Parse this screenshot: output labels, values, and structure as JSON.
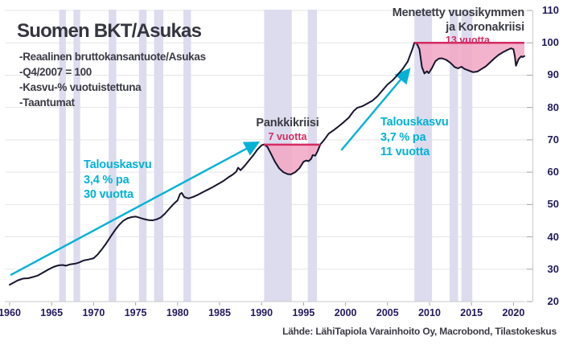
{
  "title": "Suomen BKT/Asukas",
  "subtitle": {
    "lines": [
      "-Reaalinen bruttokansantuote/Asukas",
      "-Q4/2007 = 100",
      "-Kasvu-% vuotuistettuna",
      "-Taantumat"
    ]
  },
  "source": "Lähde: LähiTapiola Varainhoito Oy, Macrobond, Tilastokeskus",
  "annotations": {
    "growth1": {
      "lines": [
        "Talouskasvu",
        "3,4 % pa",
        "30 vuotta"
      ]
    },
    "banking_crisis": {
      "title": "Pankkikriisi",
      "duration": "7 vuotta"
    },
    "growth2": {
      "lines": [
        "Talouskasvu",
        "3,7 % pa",
        "11 vuotta"
      ]
    },
    "lost_decade": {
      "title_lines": [
        "Menetetty vuosikymmen",
        "ja Koronakriisi"
      ],
      "duration": "13 vuotta"
    }
  },
  "colors": {
    "curve": "#16162e",
    "cyan_accent": "#00b2d6",
    "crimson_accent": "#d62b62",
    "pink_fill": "#f2a6c3",
    "recession_band": "#dcdcee",
    "gridline": "#e5e5e5",
    "axis_line": "#c9c9c9",
    "tick": "#a8a8a8",
    "tick_label": "#221a5e",
    "text_dark": "#3a3a44"
  },
  "chart_data": {
    "type": "line",
    "title": "Suomen BKT/Asukas",
    "xlabel": "",
    "ylabel": "",
    "x_ticks": [
      1960,
      1965,
      1970,
      1975,
      1980,
      1985,
      1990,
      1995,
      2000,
      2005,
      2010,
      2015,
      2020
    ],
    "y_ticks": [
      20,
      30,
      40,
      50,
      60,
      70,
      80,
      90,
      100,
      110
    ],
    "xlim": [
      1959.4,
      2022.2
    ],
    "ylim": [
      20,
      110
    ],
    "grid": "horizontal",
    "legend": "none",
    "series": [
      {
        "name": "Reaalinen BKT/Asukas, Q4/2007 = 100",
        "points": [
          [
            1960.0,
            25.2
          ],
          [
            1960.5,
            25.9
          ],
          [
            1961.0,
            26.6
          ],
          [
            1961.6,
            27.1
          ],
          [
            1962.2,
            27.2
          ],
          [
            1962.8,
            27.6
          ],
          [
            1963.4,
            28.1
          ],
          [
            1964.0,
            29.0
          ],
          [
            1964.6,
            29.9
          ],
          [
            1965.2,
            30.7
          ],
          [
            1965.8,
            31.2
          ],
          [
            1966.3,
            31.3
          ],
          [
            1966.7,
            31.1
          ],
          [
            1967.2,
            31.5
          ],
          [
            1967.8,
            31.7
          ],
          [
            1968.3,
            32.1
          ],
          [
            1968.8,
            32.7
          ],
          [
            1969.4,
            33.0
          ],
          [
            1970.0,
            33.4
          ],
          [
            1970.5,
            34.6
          ],
          [
            1971.0,
            36.2
          ],
          [
            1971.5,
            38.0
          ],
          [
            1972.0,
            40.0
          ],
          [
            1972.5,
            41.9
          ],
          [
            1973.0,
            43.6
          ],
          [
            1973.5,
            44.9
          ],
          [
            1974.0,
            45.7
          ],
          [
            1974.5,
            46.1
          ],
          [
            1975.0,
            46.3
          ],
          [
            1975.5,
            45.9
          ],
          [
            1976.0,
            45.5
          ],
          [
            1976.5,
            45.2
          ],
          [
            1977.0,
            45.1
          ],
          [
            1977.5,
            45.4
          ],
          [
            1978.0,
            46.0
          ],
          [
            1978.5,
            47.2
          ],
          [
            1979.0,
            48.7
          ],
          [
            1979.5,
            50.1
          ],
          [
            1980.0,
            51.3
          ],
          [
            1980.3,
            53.3
          ],
          [
            1980.5,
            53.6
          ],
          [
            1980.8,
            52.3
          ],
          [
            1981.3,
            51.9
          ],
          [
            1981.8,
            52.3
          ],
          [
            1982.4,
            53.0
          ],
          [
            1983.0,
            53.8
          ],
          [
            1983.6,
            54.6
          ],
          [
            1984.2,
            55.4
          ],
          [
            1984.8,
            56.3
          ],
          [
            1985.4,
            57.2
          ],
          [
            1986.0,
            58.3
          ],
          [
            1986.6,
            59.3
          ],
          [
            1987.0,
            60.2
          ],
          [
            1987.2,
            61.4
          ],
          [
            1987.5,
            60.6
          ],
          [
            1988.0,
            62.0
          ],
          [
            1988.5,
            63.6
          ],
          [
            1989.0,
            65.2
          ],
          [
            1989.5,
            67.0
          ],
          [
            1990.0,
            68.3
          ],
          [
            1990.3,
            68.6
          ],
          [
            1990.7,
            67.8
          ],
          [
            1991.1,
            65.8
          ],
          [
            1991.6,
            63.2
          ],
          [
            1992.1,
            61.2
          ],
          [
            1992.6,
            60.0
          ],
          [
            1993.1,
            59.4
          ],
          [
            1993.5,
            59.3
          ],
          [
            1994.0,
            60.0
          ],
          [
            1994.5,
            61.2
          ],
          [
            1995.0,
            63.2
          ],
          [
            1995.3,
            63.6
          ],
          [
            1995.6,
            63.4
          ],
          [
            1995.9,
            64.1
          ],
          [
            1996.1,
            65.3
          ],
          [
            1996.4,
            65.1
          ],
          [
            1996.7,
            66.6
          ],
          [
            1997.0,
            68.6
          ],
          [
            1997.4,
            69.8
          ],
          [
            1998.0,
            71.9
          ],
          [
            1998.6,
            73.0
          ],
          [
            1999.2,
            74.2
          ],
          [
            1999.8,
            75.5
          ],
          [
            2000.4,
            76.9
          ],
          [
            2001.0,
            79.0
          ],
          [
            2001.4,
            79.9
          ],
          [
            2002.0,
            80.4
          ],
          [
            2002.6,
            81.2
          ],
          [
            2003.2,
            82.1
          ],
          [
            2003.8,
            83.5
          ],
          [
            2004.4,
            85.3
          ],
          [
            2005.0,
            87.1
          ],
          [
            2005.6,
            88.4
          ],
          [
            2006.2,
            90.1
          ],
          [
            2006.8,
            91.9
          ],
          [
            2007.4,
            94.2
          ],
          [
            2008.0,
            98.3
          ],
          [
            2008.2,
            100.0
          ],
          [
            2008.5,
            99.7
          ],
          [
            2008.8,
            98.0
          ],
          [
            2009.1,
            92.5
          ],
          [
            2009.4,
            90.5
          ],
          [
            2009.7,
            91.2
          ],
          [
            2009.9,
            90.6
          ],
          [
            2010.3,
            92.2
          ],
          [
            2010.7,
            94.3
          ],
          [
            2011.1,
            95.1
          ],
          [
            2011.5,
            95.2
          ],
          [
            2012.0,
            94.7
          ],
          [
            2012.5,
            93.8
          ],
          [
            2013.0,
            92.5
          ],
          [
            2013.4,
            92.1
          ],
          [
            2013.8,
            92.6
          ],
          [
            2014.2,
            91.9
          ],
          [
            2014.7,
            91.4
          ],
          [
            2015.2,
            90.9
          ],
          [
            2015.7,
            91.1
          ],
          [
            2016.2,
            91.9
          ],
          [
            2016.7,
            92.7
          ],
          [
            2017.2,
            93.9
          ],
          [
            2017.7,
            95.1
          ],
          [
            2018.2,
            96.2
          ],
          [
            2018.7,
            97.0
          ],
          [
            2019.2,
            97.7
          ],
          [
            2019.7,
            98.3
          ],
          [
            2020.0,
            98.0
          ],
          [
            2020.15,
            96.0
          ],
          [
            2020.3,
            92.9
          ],
          [
            2020.6,
            94.9
          ],
          [
            2020.9,
            95.8
          ],
          [
            2021.1,
            95.6
          ],
          [
            2021.3,
            95.9
          ]
        ]
      }
    ],
    "recession_bands": [
      [
        1965.9,
        1966.7
      ],
      [
        1967.6,
        1968.4
      ],
      [
        1971.8,
        1972.7
      ],
      [
        1975.4,
        1976.3
      ],
      [
        1977.2,
        1978.3
      ],
      [
        1980.7,
        1981.6
      ],
      [
        1990.3,
        1993.6
      ],
      [
        1995.5,
        1996.6
      ],
      [
        2008.2,
        2010.3
      ],
      [
        2012.4,
        2013.4
      ],
      [
        2013.8,
        2015.1
      ]
    ],
    "crisis_regions": [
      {
        "from": 1990.3,
        "to": 1997.0,
        "level": 68.5,
        "label": "Pankkikriisi",
        "duration_label": "7 vuotta"
      },
      {
        "from": 2008.2,
        "to": 2021.3,
        "level": 100,
        "label": "Menetetty vuosikymmen ja Koronakriisi",
        "duration_label": "13 vuotta"
      }
    ],
    "trend_arrows": [
      {
        "from": [
          1960.1,
          28.2
        ],
        "to": [
          1989.6,
          69.2
        ],
        "label": "Talouskasvu 3,4 % pa 30 vuotta"
      },
      {
        "from": [
          1999.5,
          66.8
        ],
        "to": [
          2007.6,
          91.8
        ],
        "label": "Talouskasvu 3,7 % pa 11 vuotta"
      }
    ]
  }
}
